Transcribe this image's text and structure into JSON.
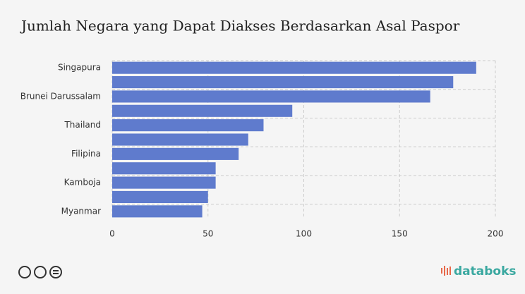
{
  "chart_data": {
    "type": "bar",
    "orientation": "horizontal",
    "title": "Jumlah Negara yang Dapat Diakses Berdasarkan Asal Paspor",
    "categories": [
      "Singapura",
      null,
      "Brunei Darussalam",
      null,
      "Thailand",
      null,
      "Filipina",
      null,
      "Kamboja",
      null,
      "Myanmar"
    ],
    "values": [
      190,
      178,
      166,
      94,
      79,
      71,
      66,
      54,
      54,
      50,
      47
    ],
    "color": "#5f7bcd",
    "xlim": [
      0,
      200
    ],
    "xticks": [
      0,
      50,
      100,
      150,
      200
    ],
    "grid": true
  },
  "footer": {
    "brand": "databoks"
  }
}
